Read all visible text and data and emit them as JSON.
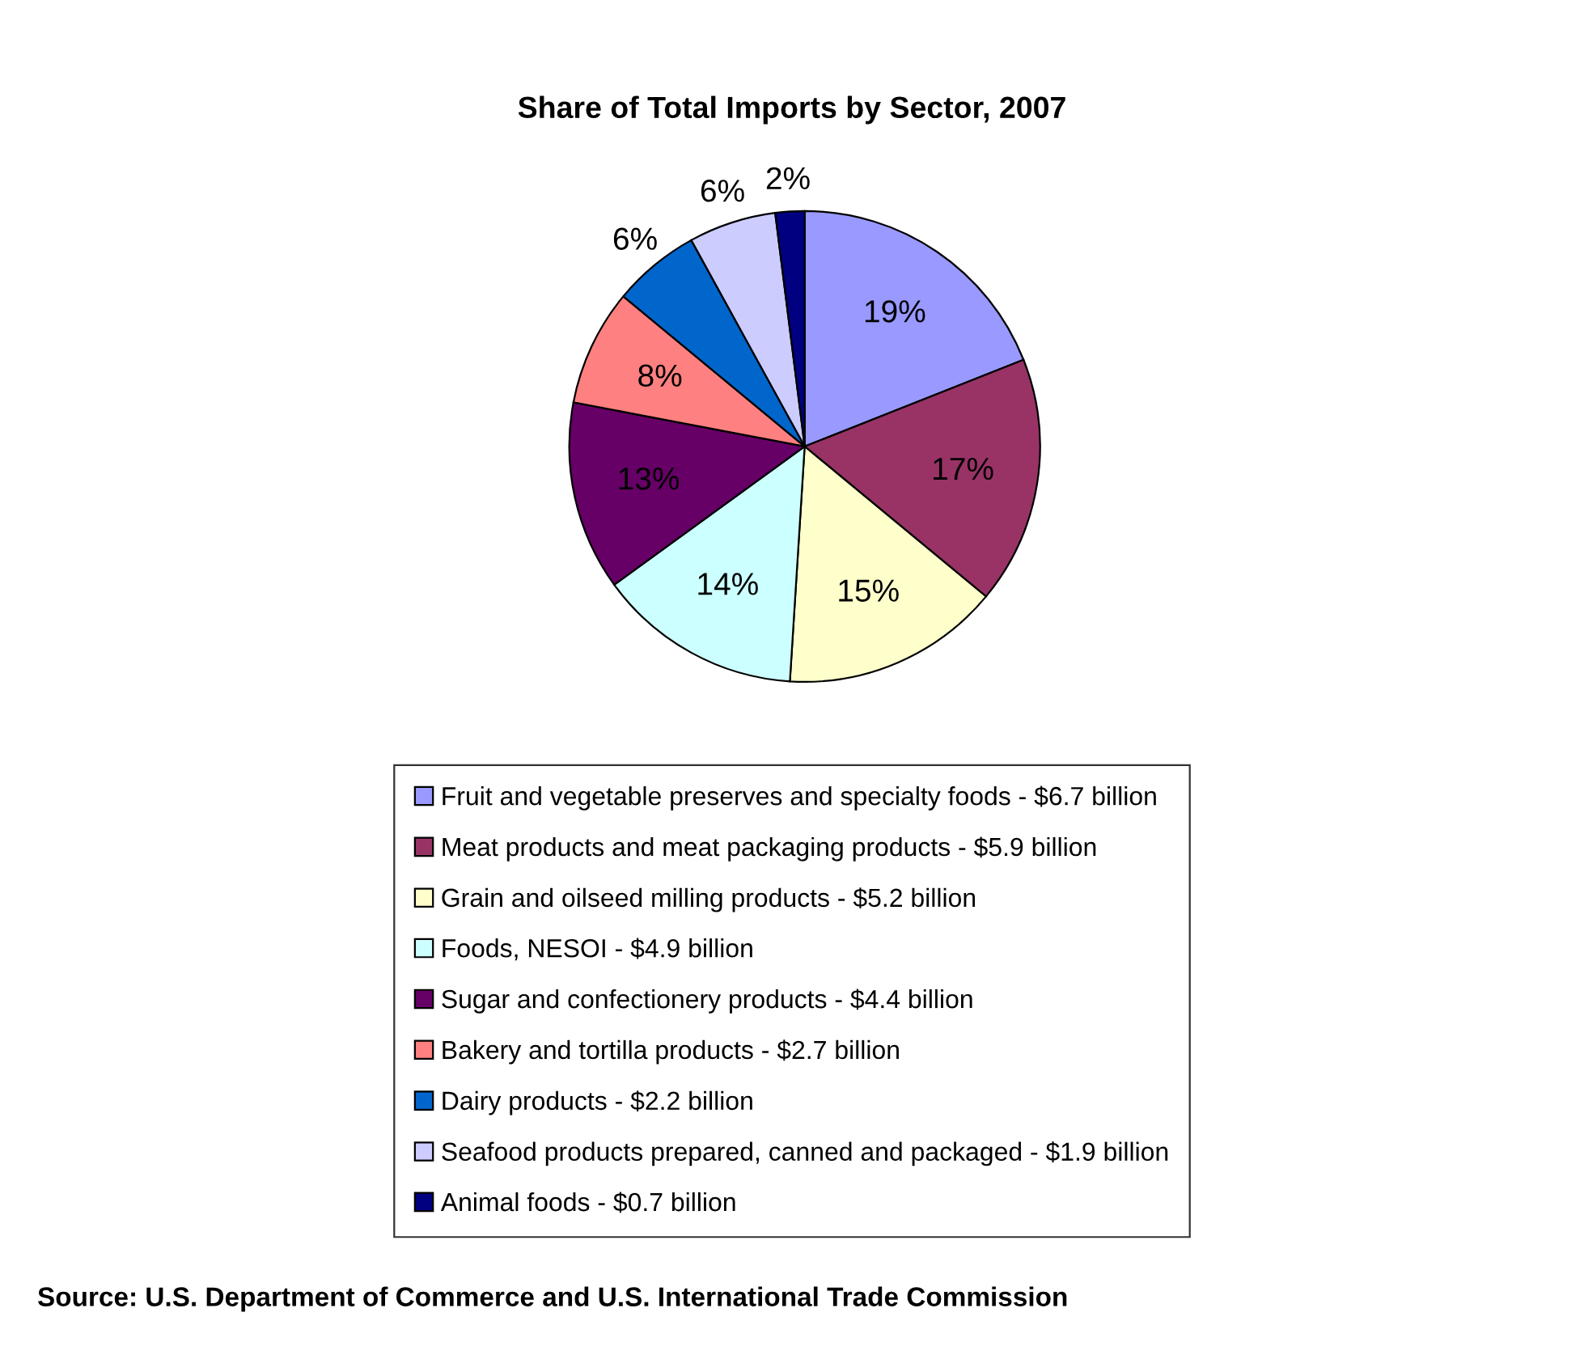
{
  "chart_data": {
    "type": "pie",
    "title": "Share of Total Imports by Sector, 2007",
    "categories": [
      "Fruit and vegetable preserves and specialty foods - $6.7 billion",
      "Meat products and meat packaging products - $5.9 billion",
      "Grain and oilseed milling products - $5.2 billion",
      "Foods, NESOI - $4.9 billion",
      "Sugar and confectionery products - $4.4 billion",
      "Bakery and tortilla products - $2.7 billion",
      "Dairy products - $2.2 billion",
      "Seafood products prepared, canned and packaged - $1.9 billion",
      "Animal foods - $0.7 billion"
    ],
    "values": [
      19,
      17,
      15,
      14,
      13,
      8,
      6,
      6,
      2
    ],
    "colors": [
      "#9999ff",
      "#993366",
      "#ffffcc",
      "#ccffff",
      "#660066",
      "#ff8080",
      "#0066cc",
      "#ccccff",
      "#000080"
    ],
    "value_labels": [
      "19%",
      "17%",
      "15%",
      "14%",
      "13%",
      "8%",
      "6%",
      "6%",
      "2%"
    ],
    "legend": "bottom",
    "annotations": [
      "Source: U.S. Department of Commerce and U.S. International Trade Commission"
    ]
  }
}
